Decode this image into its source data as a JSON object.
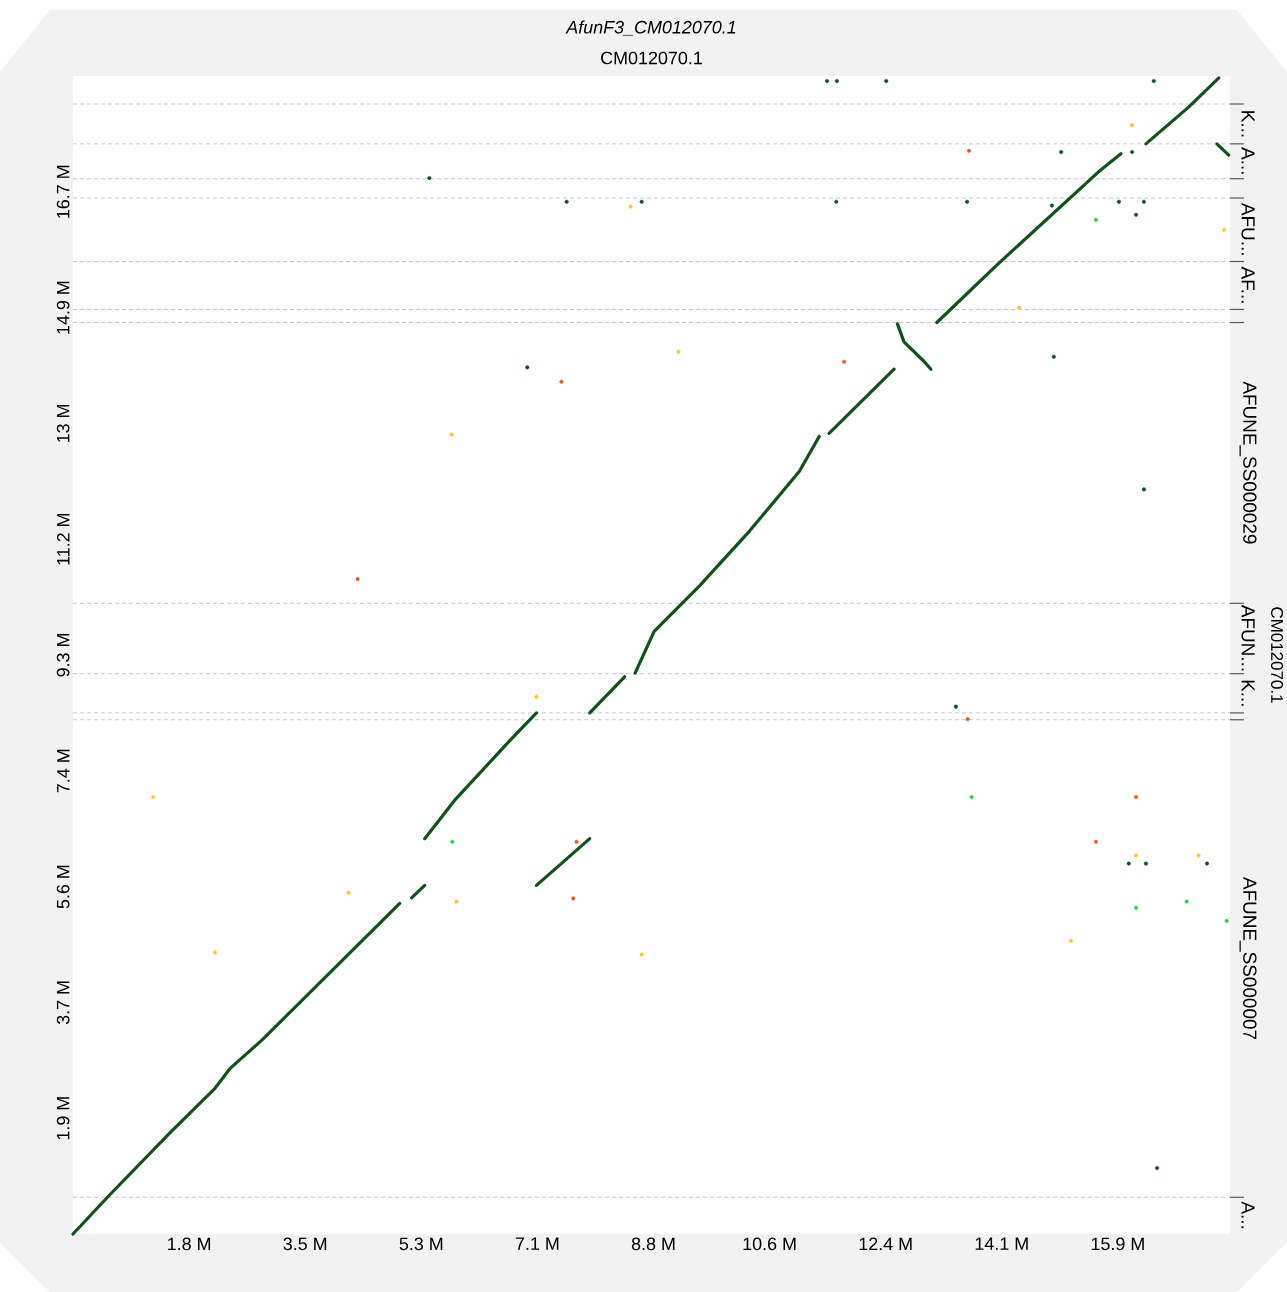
{
  "chart_data": {
    "type": "line",
    "title": "AfunF3_CM012070.1",
    "subtitle": "CM012070.1",
    "y2label": "CM012070.1",
    "xlim": [
      0,
      17.6
    ],
    "ylim": [
      0,
      18.6
    ],
    "xticks": [
      {
        "value": 1.766,
        "label": "1.8 M"
      },
      {
        "value": 3.532,
        "label": "3.5 M"
      },
      {
        "value": 5.298,
        "label": "5.3 M"
      },
      {
        "value": 7.064,
        "label": "7.1 M"
      },
      {
        "value": 8.83,
        "label": "8.8 M"
      },
      {
        "value": 10.596,
        "label": "10.6 M"
      },
      {
        "value": 12.362,
        "label": "12.4 M"
      },
      {
        "value": 14.128,
        "label": "14.1 M"
      },
      {
        "value": 15.894,
        "label": "15.9 M"
      }
    ],
    "yticks": [
      {
        "value": 1.86,
        "label": "1.9 M"
      },
      {
        "value": 3.72,
        "label": "3.7 M"
      },
      {
        "value": 5.58,
        "label": "5.6 M"
      },
      {
        "value": 7.44,
        "label": "7.4 M"
      },
      {
        "value": 9.3,
        "label": "9.3 M"
      },
      {
        "value": 11.16,
        "label": "11.2 M"
      },
      {
        "value": 13.02,
        "label": "13 M"
      },
      {
        "value": 14.88,
        "label": "14.9 M"
      },
      {
        "value": 16.74,
        "label": "16.7 M"
      }
    ],
    "ref_lines": [
      {
        "axis": "y",
        "value": 18.15,
        "color": "#bbbbbb",
        "line_style": "dashed"
      },
      {
        "axis": "y",
        "value": 17.51,
        "color": "#bbbbbb",
        "line_style": "dashed"
      },
      {
        "axis": "y",
        "value": 16.95,
        "color": "#bbbbbb",
        "line_style": "dashed"
      },
      {
        "axis": "y",
        "value": 16.64,
        "color": "#bbbbbb",
        "line_style": "dashed"
      },
      {
        "axis": "y",
        "value": 15.62,
        "color": "#bbbbbb",
        "line_style": "dashed"
      },
      {
        "axis": "y",
        "value": 14.85,
        "color": "#bbbbbb",
        "line_style": "dashed"
      },
      {
        "axis": "y",
        "value": 14.64,
        "color": "#bbbbbb",
        "line_style": "dashed"
      },
      {
        "axis": "y",
        "value": 10.13,
        "color": "#bbbbbb",
        "line_style": "dashed"
      },
      {
        "axis": "y",
        "value": 9.0,
        "color": "#bbbbbb",
        "line_style": "dashed"
      },
      {
        "axis": "y",
        "value": 8.37,
        "color": "#bbbbbb",
        "line_style": "dashed"
      },
      {
        "axis": "y",
        "value": 8.26,
        "color": "#bbbbbb",
        "line_style": "dashed"
      },
      {
        "axis": "y",
        "value": 0.59,
        "color": "#bbbbbb",
        "line_style": "dashed"
      }
    ],
    "annotations": [
      "K...",
      "A...",
      "AFU...",
      "AF...",
      "AFUNE_SS000029",
      "AFUN...",
      "K...",
      "AFUNE_SS000007",
      "A..."
    ],
    "series": [
      {
        "color": "#11511c",
        "x": [
          0,
          0.56,
          1.47,
          2.16,
          2.39,
          2.87,
          4.97
        ],
        "values": [
          0,
          0.63,
          1.62,
          2.34,
          2.66,
          3.11,
          5.31
        ]
      },
      {
        "color": "#11511c",
        "x": [
          5.15,
          5.35
        ],
        "values": [
          5.4,
          5.6
        ]
      },
      {
        "color": "#11511c",
        "x": [
          5.35,
          5.8,
          6.64,
          7.05
        ],
        "values": [
          6.35,
          6.96,
          7.92,
          8.37
        ]
      },
      {
        "color": "#11511c",
        "x": [
          7.86,
          8.39
        ],
        "values": [
          8.37,
          8.95
        ]
      },
      {
        "color": "#11511c",
        "x": [
          8.55,
          8.84,
          9.53,
          10.29,
          11.05,
          11.35
        ],
        "values": [
          9.01,
          9.68,
          10.41,
          11.29,
          12.25,
          12.81
        ]
      },
      {
        "color": "#11511c",
        "x": [
          11.5,
          12.49
        ],
        "values": [
          12.86,
          13.89
        ]
      },
      {
        "color": "#11511c",
        "x": [
          12.54,
          12.64,
          12.95,
          13.05
        ],
        "values": [
          14.62,
          14.33,
          14.01,
          13.89
        ]
      },
      {
        "color": "#11511c",
        "x": [
          13.14,
          14.08,
          15.6,
          15.94
        ],
        "values": [
          14.64,
          15.59,
          17.06,
          17.35
        ]
      },
      {
        "color": "#11511c",
        "x": [
          16.32,
          16.97,
          17.43
        ],
        "values": [
          17.51,
          18.1,
          18.57
        ]
      },
      {
        "color": "#11511c",
        "x": [
          17.4,
          17.58
        ],
        "values": [
          17.51,
          17.33
        ]
      },
      {
        "color": "#11511c",
        "x": [
          7.05,
          7.86
        ],
        "values": [
          5.6,
          6.35
        ]
      },
      {
        "type": "scatter",
        "color": "#11511c",
        "x": [
          11.47,
          11.62,
          12.37,
          16.44,
          5.42,
          7.51,
          8.65,
          11.61,
          13.6,
          15.03,
          16.11,
          14.89,
          15.91,
          16.17,
          16.29,
          6.91,
          14.92,
          16.29,
          13.43,
          16.06,
          16.32,
          17.25,
          16.49
        ],
        "values": [
          18.52,
          18.52,
          18.52,
          18.52,
          16.96,
          16.58,
          16.58,
          16.58,
          16.58,
          17.38,
          17.38,
          16.52,
          16.58,
          16.37,
          16.58,
          13.92,
          14.09,
          11.96,
          8.47,
          5.95,
          5.95,
          5.95,
          1.06
        ]
      },
      {
        "type": "scatter",
        "color": "#33cc44",
        "x": [
          15.56,
          5.77,
          13.67,
          16.17,
          16.94,
          17.55
        ],
        "values": [
          16.29,
          6.3,
          7.02,
          5.24,
          5.34,
          5.03
        ]
      },
      {
        "type": "scatter",
        "color": "#e06020",
        "x": [
          13.63,
          11.73,
          7.43,
          4.33,
          13.61,
          7.66,
          16.17,
          15.56,
          7.61
        ],
        "values": [
          17.4,
          14.01,
          13.69,
          10.52,
          8.27,
          6.3,
          7.02,
          6.3,
          5.39
        ]
      },
      {
        "type": "scatter",
        "color": "#ffc830",
        "x": [
          16.11,
          17.51,
          8.48,
          14.39,
          9.21,
          5.76,
          7.05,
          1.22,
          16.17,
          17.12,
          4.19,
          5.83,
          2.16,
          8.65,
          15.18
        ],
        "values": [
          17.81,
          16.13,
          16.5,
          14.88,
          14.17,
          12.84,
          8.63,
          7.02,
          6.08,
          6.08,
          5.48,
          5.34,
          4.52,
          4.49,
          4.71
        ]
      }
    ]
  }
}
